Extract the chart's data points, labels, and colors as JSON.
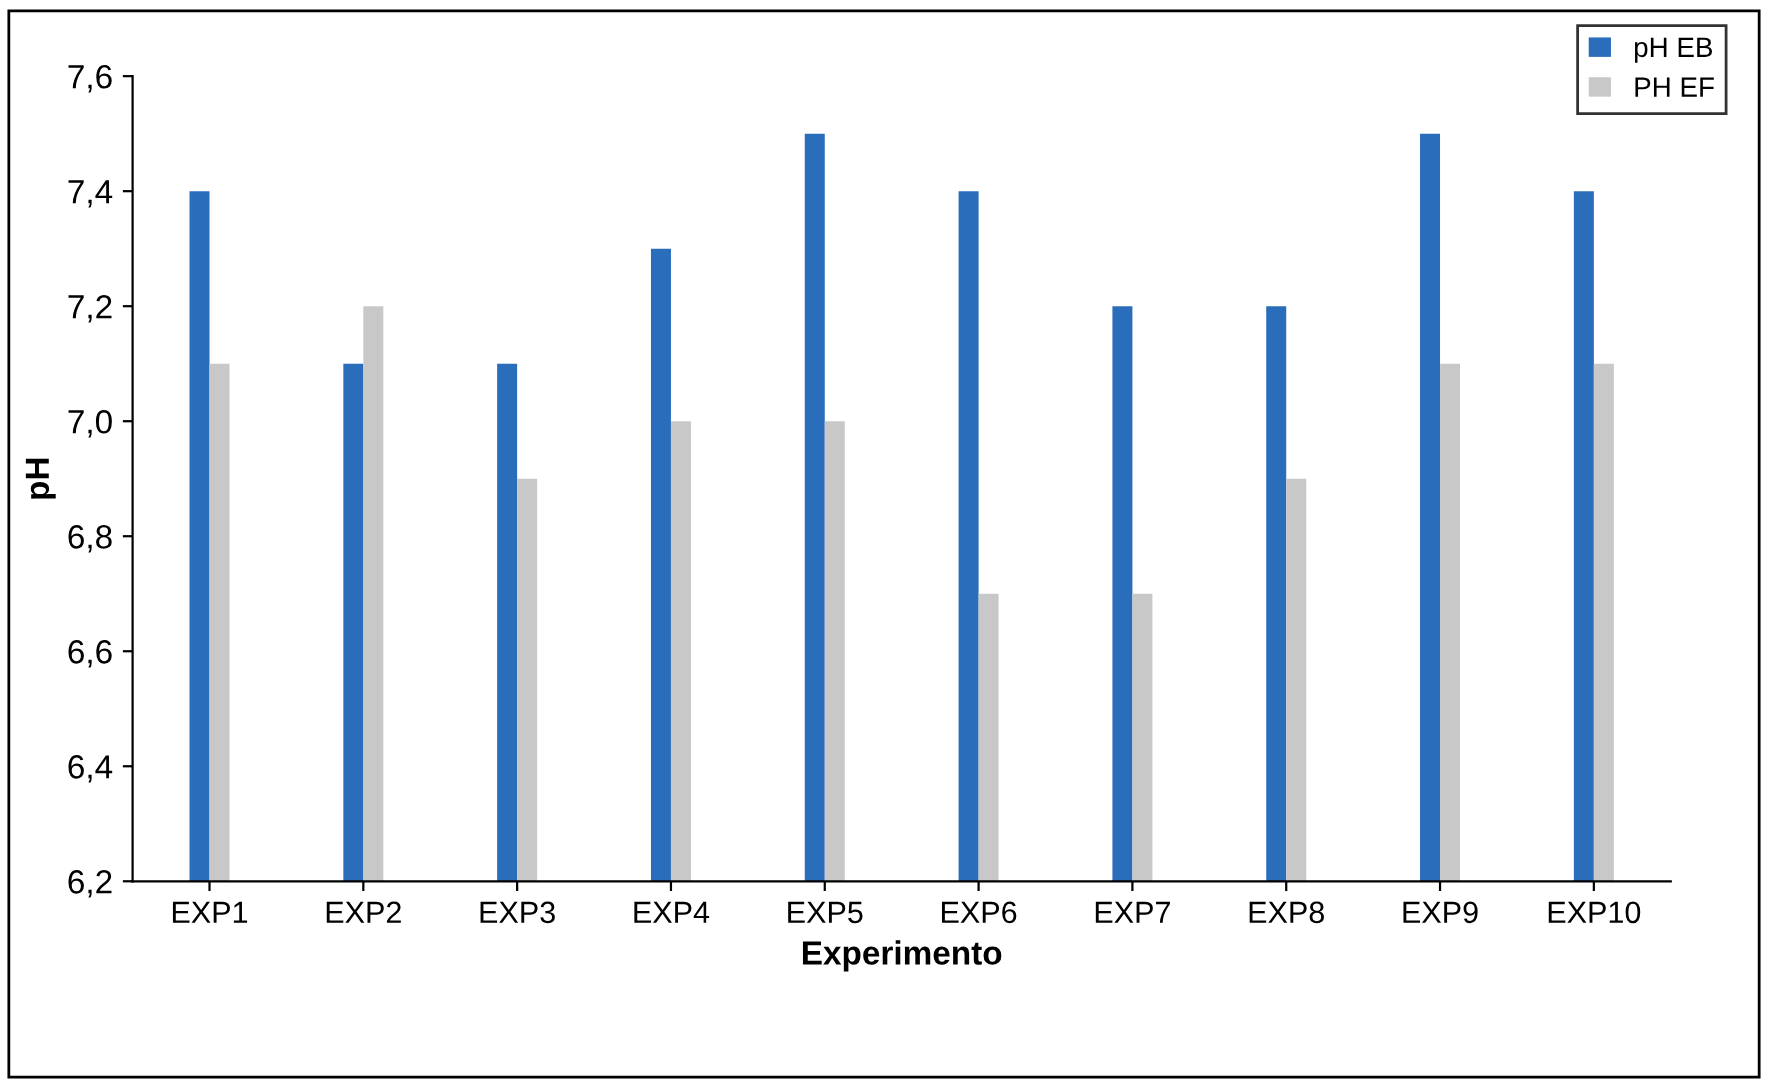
{
  "chart_data": {
    "type": "bar",
    "xlabel": "Experimento",
    "ylabel": "pH",
    "categories": [
      "EXP1",
      "EXP2",
      "EXP3",
      "EXP4",
      "EXP5",
      "EXP6",
      "EXP7",
      "EXP8",
      "EXP9",
      "EXP10"
    ],
    "series": [
      {
        "name": "pH EB",
        "color": "#2a6ebb",
        "values": [
          7.4,
          7.1,
          7.1,
          7.3,
          7.5,
          7.4,
          7.2,
          7.2,
          7.5,
          7.4
        ]
      },
      {
        "name": "PH EF",
        "color": "#c8c8c8",
        "values": [
          7.1,
          7.2,
          6.9,
          7.0,
          7.0,
          6.7,
          6.7,
          6.9,
          7.1,
          7.1
        ]
      }
    ],
    "ylim": [
      6.2,
      7.6
    ],
    "yticks": [
      {
        "value": 6.2,
        "label": "6,2"
      },
      {
        "value": 6.4,
        "label": "6,4"
      },
      {
        "value": 6.6,
        "label": "6,6"
      },
      {
        "value": 6.8,
        "label": "6,8"
      },
      {
        "value": 7.0,
        "label": "7,0"
      },
      {
        "value": 7.2,
        "label": "7,2"
      },
      {
        "value": 7.4,
        "label": "7,4"
      },
      {
        "value": 7.6,
        "label": "7,6"
      }
    ],
    "grid": false,
    "legend": "top right"
  }
}
